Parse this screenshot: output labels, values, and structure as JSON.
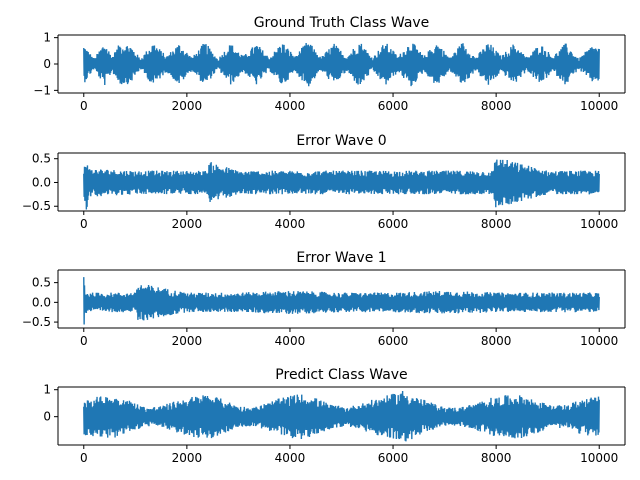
{
  "chart_data": [
    {
      "type": "line",
      "title": "Ground Truth Class Wave",
      "xlabel": "",
      "ylabel": "",
      "xlim": [
        -500,
        10500
      ],
      "ylim": [
        -1.1,
        1.1
      ],
      "xticks": [
        0,
        2000,
        4000,
        6000,
        8000,
        10000
      ],
      "yticks": [
        1,
        0,
        -1
      ],
      "ytick_labels": [
        "1",
        "0",
        "−1"
      ],
      "color": "#1f77b4",
      "series": [
        {
          "x": [
            0,
            200,
            400,
            550,
            700,
            900,
            1100,
            1350,
            1600,
            1850,
            2100,
            2350,
            2600,
            2850,
            3100,
            3350,
            3600,
            3850,
            4100,
            4350,
            4600,
            4850,
            5100,
            5350,
            5600,
            5850,
            6100,
            6350,
            6600,
            6850,
            7100,
            7350,
            7600,
            7850,
            8100,
            8350,
            8600,
            8850,
            9100,
            9350,
            9600,
            9850,
            10000
          ],
          "y": [
            0.75,
            0.2,
            0.85,
            0.3,
            0.8,
            0.75,
            0.2,
            0.85,
            0.3,
            0.8,
            0.25,
            0.85,
            0.2,
            0.8,
            0.3,
            0.8,
            0.25,
            0.85,
            0.3,
            0.9,
            0.25,
            0.8,
            0.3,
            0.9,
            0.25,
            0.85,
            0.3,
            0.9,
            0.3,
            0.85,
            0.25,
            0.85,
            0.25,
            0.85,
            0.3,
            0.8,
            0.25,
            0.8,
            0.3,
            0.8,
            0.2,
            0.7,
            0.65
          ]
        }
      ]
    },
    {
      "type": "line",
      "title": "Error Wave 0",
      "xlabel": "",
      "ylabel": "",
      "xlim": [
        -500,
        10500
      ],
      "ylim": [
        -0.6,
        0.62
      ],
      "xticks": [
        0,
        2000,
        4000,
        6000,
        8000,
        10000
      ],
      "yticks": [
        0.5,
        0.0,
        -0.5
      ],
      "ytick_labels": [
        "0.5",
        "0.0",
        "−0.5"
      ],
      "color": "#1f77b4",
      "series": [
        {
          "x": [
            0,
            50,
            100,
            1000,
            2000,
            2400,
            2420,
            3000,
            4000,
            5000,
            6000,
            7000,
            7950,
            7970,
            9000,
            10000
          ],
          "y": [
            0.3,
            0.6,
            0.3,
            0.25,
            0.25,
            0.25,
            0.45,
            0.25,
            0.25,
            0.25,
            0.25,
            0.25,
            0.25,
            0.55,
            0.25,
            0.25
          ]
        }
      ]
    },
    {
      "type": "line",
      "title": "Error Wave 1",
      "xlabel": "",
      "ylabel": "",
      "xlim": [
        -500,
        10500
      ],
      "ylim": [
        -0.65,
        0.82
      ],
      "xticks": [
        0,
        2000,
        4000,
        6000,
        8000,
        10000
      ],
      "yticks": [
        0.5,
        0.0,
        -0.5
      ],
      "ytick_labels": [
        "0.5",
        "0.0",
        "−0.5"
      ],
      "color": "#1f77b4",
      "series": [
        {
          "x": [
            0,
            30,
            100,
            1000,
            1050,
            2000,
            3000,
            4000,
            5000,
            6000,
            7000,
            8000,
            9000,
            10000
          ],
          "y": [
            0.8,
            0.3,
            0.25,
            0.25,
            0.5,
            0.25,
            0.25,
            0.3,
            0.25,
            0.25,
            0.3,
            0.25,
            0.25,
            0.25
          ]
        }
      ]
    },
    {
      "type": "line",
      "title": "Predict Class Wave",
      "xlabel": "",
      "ylabel": "",
      "xlim": [
        -500,
        10500
      ],
      "ylim": [
        -1.05,
        1.1
      ],
      "xticks": [
        0,
        2000,
        4000,
        6000,
        8000,
        10000
      ],
      "yticks": [
        1,
        0
      ],
      "ytick_labels": [
        "1",
        "0"
      ],
      "color": "#1f77b4",
      "series": [
        {
          "x": [
            0,
            300,
            600,
            900,
            1200,
            1500,
            1800,
            2100,
            2400,
            2700,
            3000,
            3300,
            3600,
            3900,
            4200,
            4500,
            4800,
            5100,
            5400,
            5700,
            6000,
            6200,
            6400,
            6700,
            7000,
            7300,
            7600,
            7900,
            8200,
            8500,
            8800,
            9100,
            9400,
            9700,
            10000
          ],
          "y": [
            0.7,
            0.75,
            0.8,
            0.6,
            0.35,
            0.4,
            0.6,
            0.75,
            0.85,
            0.65,
            0.4,
            0.35,
            0.55,
            0.75,
            0.85,
            0.7,
            0.45,
            0.35,
            0.5,
            0.7,
            0.85,
            1.0,
            0.8,
            0.55,
            0.35,
            0.35,
            0.5,
            0.7,
            0.8,
            0.8,
            0.6,
            0.4,
            0.45,
            0.7,
            0.75
          ]
        }
      ]
    }
  ]
}
